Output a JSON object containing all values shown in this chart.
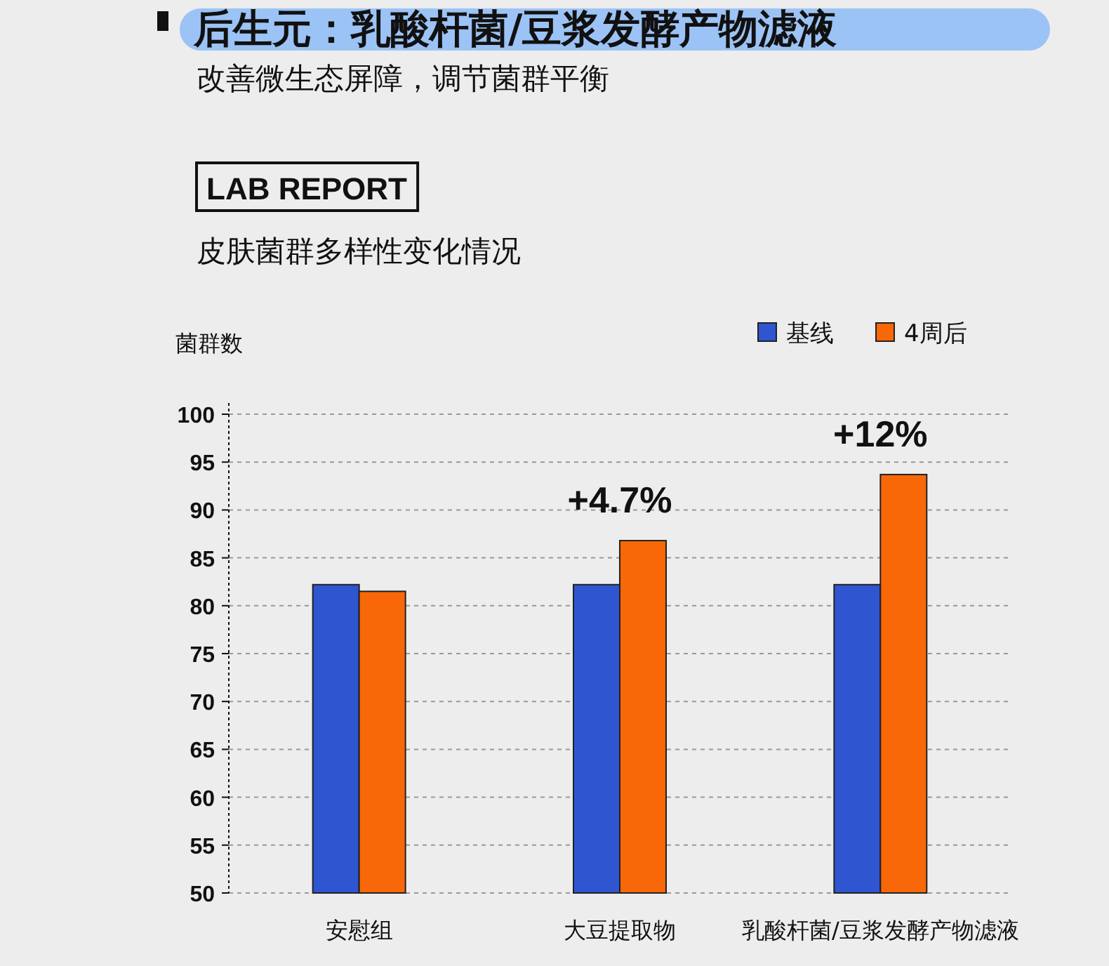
{
  "chart_data": {
    "type": "bar",
    "title": "后生元：乳酸杆菌/豆浆发酵产物滤液",
    "subtitle": "改善微生态屏障，调节菌群平衡",
    "ylabel": "菌群数",
    "annotations": [
      "LAB REPORT",
      "皮肤菌群多样性变化情况",
      "+4.7%",
      "+12%"
    ],
    "categories": [
      "安慰组",
      "大豆提取物",
      "乳酸杆菌/豆浆发酵产物滤液"
    ],
    "series": [
      {
        "name": "基线",
        "color": "#2f56d0",
        "values": [
          82.2,
          82.2,
          82.2
        ]
      },
      {
        "name": "4周后",
        "color": "#f86808",
        "values": [
          81.5,
          86.8,
          93.7
        ]
      }
    ],
    "ylim": [
      50,
      100
    ],
    "yticks": [
      50,
      55,
      60,
      65,
      70,
      75,
      80,
      85,
      90,
      95,
      100
    ],
    "grid": "y",
    "legend": "top right"
  }
}
